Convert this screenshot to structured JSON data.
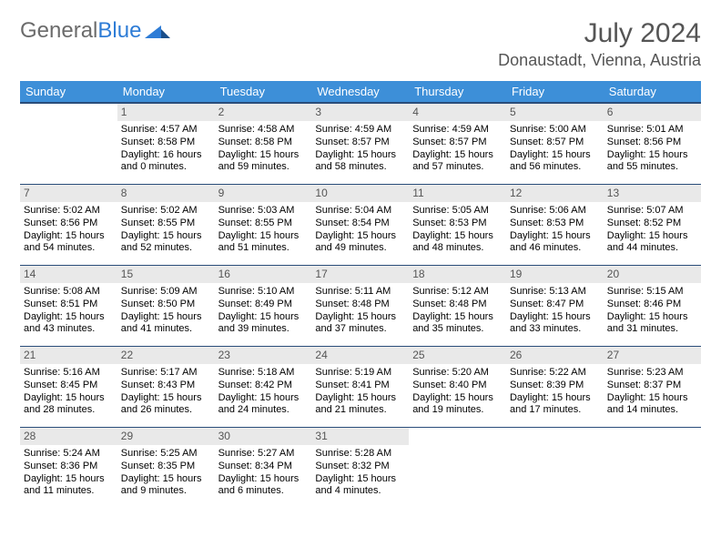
{
  "logo": {
    "general": "General",
    "blue": "Blue"
  },
  "title": "July 2024",
  "location": "Donaustadt, Vienna, Austria",
  "colors": {
    "header_bg": "#3d8fd8",
    "header_border": "#2a4d7a",
    "daynum_bg": "#e9e9e9",
    "text": "#000000",
    "muted": "#555555",
    "logo_gray": "#6b6b6b",
    "logo_blue": "#2e7cd6"
  },
  "dow": [
    "Sunday",
    "Monday",
    "Tuesday",
    "Wednesday",
    "Thursday",
    "Friday",
    "Saturday"
  ],
  "weeks": [
    [
      null,
      {
        "n": "1",
        "sr": "4:57 AM",
        "ss": "8:58 PM",
        "dl": "16 hours and 0 minutes."
      },
      {
        "n": "2",
        "sr": "4:58 AM",
        "ss": "8:58 PM",
        "dl": "15 hours and 59 minutes."
      },
      {
        "n": "3",
        "sr": "4:59 AM",
        "ss": "8:57 PM",
        "dl": "15 hours and 58 minutes."
      },
      {
        "n": "4",
        "sr": "4:59 AM",
        "ss": "8:57 PM",
        "dl": "15 hours and 57 minutes."
      },
      {
        "n": "5",
        "sr": "5:00 AM",
        "ss": "8:57 PM",
        "dl": "15 hours and 56 minutes."
      },
      {
        "n": "6",
        "sr": "5:01 AM",
        "ss": "8:56 PM",
        "dl": "15 hours and 55 minutes."
      }
    ],
    [
      {
        "n": "7",
        "sr": "5:02 AM",
        "ss": "8:56 PM",
        "dl": "15 hours and 54 minutes."
      },
      {
        "n": "8",
        "sr": "5:02 AM",
        "ss": "8:55 PM",
        "dl": "15 hours and 52 minutes."
      },
      {
        "n": "9",
        "sr": "5:03 AM",
        "ss": "8:55 PM",
        "dl": "15 hours and 51 minutes."
      },
      {
        "n": "10",
        "sr": "5:04 AM",
        "ss": "8:54 PM",
        "dl": "15 hours and 49 minutes."
      },
      {
        "n": "11",
        "sr": "5:05 AM",
        "ss": "8:53 PM",
        "dl": "15 hours and 48 minutes."
      },
      {
        "n": "12",
        "sr": "5:06 AM",
        "ss": "8:53 PM",
        "dl": "15 hours and 46 minutes."
      },
      {
        "n": "13",
        "sr": "5:07 AM",
        "ss": "8:52 PM",
        "dl": "15 hours and 44 minutes."
      }
    ],
    [
      {
        "n": "14",
        "sr": "5:08 AM",
        "ss": "8:51 PM",
        "dl": "15 hours and 43 minutes."
      },
      {
        "n": "15",
        "sr": "5:09 AM",
        "ss": "8:50 PM",
        "dl": "15 hours and 41 minutes."
      },
      {
        "n": "16",
        "sr": "5:10 AM",
        "ss": "8:49 PM",
        "dl": "15 hours and 39 minutes."
      },
      {
        "n": "17",
        "sr": "5:11 AM",
        "ss": "8:48 PM",
        "dl": "15 hours and 37 minutes."
      },
      {
        "n": "18",
        "sr": "5:12 AM",
        "ss": "8:48 PM",
        "dl": "15 hours and 35 minutes."
      },
      {
        "n": "19",
        "sr": "5:13 AM",
        "ss": "8:47 PM",
        "dl": "15 hours and 33 minutes."
      },
      {
        "n": "20",
        "sr": "5:15 AM",
        "ss": "8:46 PM",
        "dl": "15 hours and 31 minutes."
      }
    ],
    [
      {
        "n": "21",
        "sr": "5:16 AM",
        "ss": "8:45 PM",
        "dl": "15 hours and 28 minutes."
      },
      {
        "n": "22",
        "sr": "5:17 AM",
        "ss": "8:43 PM",
        "dl": "15 hours and 26 minutes."
      },
      {
        "n": "23",
        "sr": "5:18 AM",
        "ss": "8:42 PM",
        "dl": "15 hours and 24 minutes."
      },
      {
        "n": "24",
        "sr": "5:19 AM",
        "ss": "8:41 PM",
        "dl": "15 hours and 21 minutes."
      },
      {
        "n": "25",
        "sr": "5:20 AM",
        "ss": "8:40 PM",
        "dl": "15 hours and 19 minutes."
      },
      {
        "n": "26",
        "sr": "5:22 AM",
        "ss": "8:39 PM",
        "dl": "15 hours and 17 minutes."
      },
      {
        "n": "27",
        "sr": "5:23 AM",
        "ss": "8:37 PM",
        "dl": "15 hours and 14 minutes."
      }
    ],
    [
      {
        "n": "28",
        "sr": "5:24 AM",
        "ss": "8:36 PM",
        "dl": "15 hours and 11 minutes."
      },
      {
        "n": "29",
        "sr": "5:25 AM",
        "ss": "8:35 PM",
        "dl": "15 hours and 9 minutes."
      },
      {
        "n": "30",
        "sr": "5:27 AM",
        "ss": "8:34 PM",
        "dl": "15 hours and 6 minutes."
      },
      {
        "n": "31",
        "sr": "5:28 AM",
        "ss": "8:32 PM",
        "dl": "15 hours and 4 minutes."
      },
      null,
      null,
      null
    ]
  ],
  "labels": {
    "sunrise": "Sunrise:",
    "sunset": "Sunset:",
    "daylight": "Daylight:"
  }
}
